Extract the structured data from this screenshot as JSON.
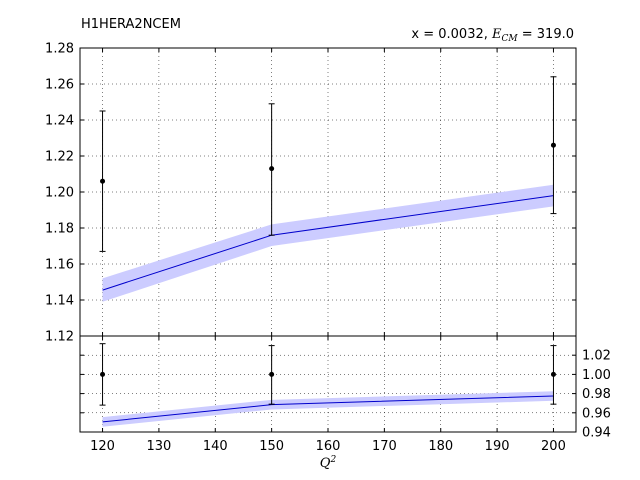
{
  "chart_data": [
    {
      "panel": "main",
      "type": "line",
      "title": "H1HERA2NCEM",
      "subtitle": {
        "prefix": "x = 0.0032, ",
        "ecm_symbol": "E",
        "ecm_sub": "CM",
        "suffix": " = 319.0"
      },
      "xlim": [
        116,
        204
      ],
      "ylim": [
        1.12,
        1.28
      ],
      "x_ticks": [
        120,
        130,
        140,
        150,
        160,
        170,
        180,
        190,
        200
      ],
      "y_ticks": [
        1.12,
        1.14,
        1.16,
        1.18,
        1.2,
        1.22,
        1.24,
        1.26,
        1.28
      ],
      "y_tick_labels": [
        "1.12",
        "1.14",
        "1.16",
        "1.18",
        "1.20",
        "1.22",
        "1.24",
        "1.26",
        "1.28"
      ],
      "grid": true,
      "series": [
        {
          "kind": "band",
          "color": "#ccccff",
          "x": [
            120,
            150,
            200
          ],
          "lower": [
            1.139,
            1.17,
            1.192
          ],
          "upper": [
            1.152,
            1.182,
            1.204
          ],
          "central": [
            1.1455,
            1.176,
            1.198
          ]
        },
        {
          "kind": "errorbar",
          "color": "#000000",
          "x": [
            120,
            150,
            200
          ],
          "y": [
            1.206,
            1.213,
            1.226
          ],
          "err_low": [
            1.167,
            1.176,
            1.188
          ],
          "err_high": [
            1.245,
            1.249,
            1.264
          ]
        }
      ],
      "line_color": "#0000cc"
    },
    {
      "panel": "ratio",
      "type": "line",
      "xlabel": "Q",
      "xlabel_sup": "2",
      "xlim": [
        116,
        204
      ],
      "ylim": [
        0.94,
        1.04
      ],
      "x_ticks": [
        120,
        130,
        140,
        150,
        160,
        170,
        180,
        190,
        200
      ],
      "x_tick_labels": [
        "120",
        "130",
        "140",
        "150",
        "160",
        "170",
        "180",
        "190",
        "200"
      ],
      "y_ticks": [
        0.94,
        0.96,
        0.98,
        1.0,
        1.02
      ],
      "y_tick_labels": [
        "0.94",
        "0.96",
        "0.98",
        "1.00",
        "1.02"
      ],
      "grid": true,
      "series": [
        {
          "kind": "band",
          "color": "#ccccff",
          "x": [
            120,
            150,
            200
          ],
          "lower": [
            0.9455,
            0.9635,
            0.9725
          ],
          "upper": [
            0.9555,
            0.9735,
            0.9825
          ],
          "central": [
            0.9505,
            0.9685,
            0.9775
          ]
        },
        {
          "kind": "errorbar",
          "color": "#000000",
          "x": [
            120,
            150,
            200
          ],
          "y": [
            1.0,
            1.0,
            1.0
          ],
          "err_low": [
            0.968,
            0.969,
            0.969
          ],
          "err_high": [
            1.032,
            1.03,
            1.03
          ]
        }
      ],
      "line_color": "#0000cc"
    }
  ]
}
